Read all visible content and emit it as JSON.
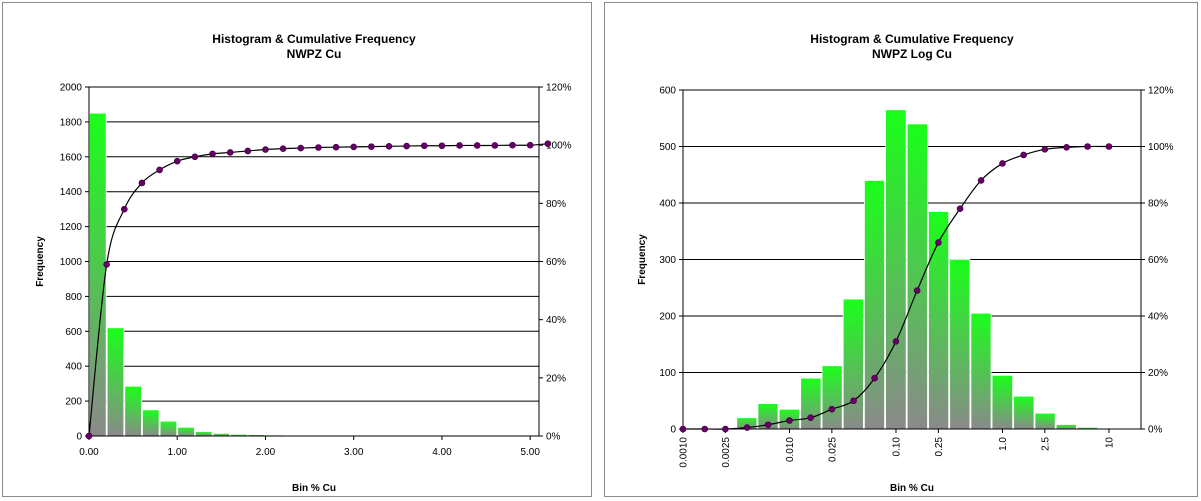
{
  "colors": {
    "bar_top": "#19ff19",
    "bar_bottom": "#8a8a8a",
    "bar_edge": "#ffffff",
    "line": "#000000",
    "marker": "#660066",
    "grid": "#000000",
    "border": "#8c8c8c"
  },
  "chart_data": [
    {
      "type": "bar",
      "title": "Histogram & Cumulative Frequency",
      "subtitle": "NWPZ Cu",
      "xlabel": "Bin % Cu",
      "ylabel": "Frequency",
      "ylim": [
        0,
        2000
      ],
      "y2lim": [
        0,
        120
      ],
      "yticks": [
        "0",
        "200",
        "400",
        "600",
        "800",
        "1000",
        "1200",
        "1400",
        "1600",
        "1800",
        "2000"
      ],
      "y2ticks": [
        "0%",
        "20%",
        "40%",
        "60%",
        "80%",
        "100%",
        "120%"
      ],
      "xlim": [
        0,
        5.1
      ],
      "xticks": [
        {
          "value": 0,
          "label": "0.00"
        },
        {
          "value": 1,
          "label": "1.00"
        },
        {
          "value": 2,
          "label": "2.00"
        },
        {
          "value": 3,
          "label": "3.00"
        },
        {
          "value": 4,
          "label": "4.00"
        },
        {
          "value": 5,
          "label": "5.00"
        }
      ],
      "grid": "horizontal",
      "bin_width": 0.2,
      "series": [
        {
          "kind": "bar",
          "x": [
            0.2,
            0.4,
            0.6,
            0.8,
            1.0,
            1.2,
            1.4,
            1.6,
            1.8,
            2.0,
            2.2,
            2.4,
            2.6,
            2.8,
            3.0,
            3.2,
            3.4,
            3.6,
            3.8,
            4.0,
            4.2,
            4.4,
            4.6,
            4.8,
            5.0
          ],
          "values": [
            1850,
            620,
            285,
            150,
            85,
            50,
            25,
            15,
            10,
            8,
            6,
            5,
            4,
            3,
            3,
            2,
            2,
            2,
            1,
            1,
            1,
            1,
            1,
            1,
            1
          ]
        },
        {
          "kind": "line",
          "axis": "secondary",
          "x": [
            0.0,
            0.2,
            0.4,
            0.6,
            0.8,
            1.0,
            1.2,
            1.4,
            1.6,
            1.8,
            2.0,
            2.2,
            2.4,
            2.6,
            2.8,
            3.0,
            3.2,
            3.4,
            3.6,
            3.8,
            4.0,
            4.2,
            4.4,
            4.6,
            4.8,
            5.0,
            5.2
          ],
          "values": [
            0,
            59,
            78,
            87,
            91.5,
            94.5,
            96,
            97,
            97.5,
            98,
            98.5,
            98.8,
            99,
            99.2,
            99.3,
            99.4,
            99.5,
            99.6,
            99.7,
            99.8,
            99.8,
            99.9,
            99.9,
            99.9,
            100,
            100,
            100.5
          ]
        }
      ]
    },
    {
      "type": "bar",
      "title": "Histogram & Cumulative Frequency",
      "subtitle": "NWPZ Log Cu",
      "xlabel": "Bin % Cu",
      "ylabel": "Frequency",
      "ylim": [
        0,
        600
      ],
      "y2lim": [
        0,
        120
      ],
      "yticks": [
        "0",
        "100",
        "200",
        "300",
        "400",
        "500",
        "600"
      ],
      "y2ticks": [
        "0%",
        "20%",
        "40%",
        "60%",
        "80%",
        "100%",
        "120%"
      ],
      "xscale": "log",
      "xlim": [
        0.001,
        20
      ],
      "xticks": [
        {
          "value": 0.001,
          "label": "0.0010"
        },
        {
          "value": 0.0025,
          "label": "0.0025"
        },
        {
          "value": 0.01,
          "label": "0.010"
        },
        {
          "value": 0.025,
          "label": "0.025"
        },
        {
          "value": 0.1,
          "label": "0.10"
        },
        {
          "value": 0.25,
          "label": "0.25"
        },
        {
          "value": 1,
          "label": "1.0"
        },
        {
          "value": 2.5,
          "label": "2.5"
        },
        {
          "value": 10,
          "label": "10"
        }
      ],
      "grid": "horizontal",
      "series": [
        {
          "kind": "bar",
          "x": [
            0.005,
            0.0079,
            0.0126,
            0.02,
            0.0316,
            0.05,
            0.079,
            0.126,
            0.2,
            0.316,
            0.5,
            0.79,
            1.26,
            2.0,
            3.16,
            5.0,
            7.9
          ],
          "values": [
            20,
            45,
            35,
            90,
            112,
            230,
            440,
            565,
            540,
            385,
            300,
            205,
            95,
            58,
            28,
            8,
            3
          ]
        },
        {
          "kind": "line",
          "axis": "secondary",
          "x": [
            0.001,
            0.0016,
            0.0025,
            0.004,
            0.0063,
            0.01,
            0.0158,
            0.025,
            0.04,
            0.063,
            0.1,
            0.158,
            0.25,
            0.4,
            0.63,
            1.0,
            1.58,
            2.5,
            4.0,
            6.3,
            10
          ],
          "values": [
            0,
            0,
            0,
            0.5,
            1.5,
            3,
            4,
            7,
            10,
            18,
            31,
            49,
            66,
            78,
            88,
            94,
            97,
            99,
            99.7,
            100,
            100
          ]
        }
      ]
    }
  ]
}
